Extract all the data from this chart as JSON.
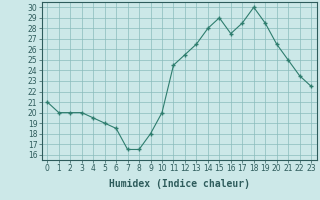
{
  "x": [
    0,
    1,
    2,
    3,
    4,
    5,
    6,
    7,
    8,
    9,
    10,
    11,
    12,
    13,
    14,
    15,
    16,
    17,
    18,
    19,
    20,
    21,
    22,
    23
  ],
  "y": [
    21,
    20,
    20,
    20,
    19.5,
    19,
    18.5,
    16.5,
    16.5,
    18,
    20,
    24.5,
    25.5,
    26.5,
    28,
    29,
    27.5,
    28.5,
    30,
    28.5,
    26.5,
    25,
    23.5,
    22.5
  ],
  "line_color": "#2e7d6e",
  "marker": "+",
  "marker_color": "#2e7d6e",
  "bg_color": "#cce8e8",
  "grid_color": "#8abcbc",
  "xlabel": "Humidex (Indice chaleur)",
  "xlim": [
    -0.5,
    23.5
  ],
  "ylim": [
    15.5,
    30.5
  ],
  "yticks": [
    16,
    17,
    18,
    19,
    20,
    21,
    22,
    23,
    24,
    25,
    26,
    27,
    28,
    29,
    30
  ],
  "xticks": [
    0,
    1,
    2,
    3,
    4,
    5,
    6,
    7,
    8,
    9,
    10,
    11,
    12,
    13,
    14,
    15,
    16,
    17,
    18,
    19,
    20,
    21,
    22,
    23
  ],
  "tick_fontsize": 5.5,
  "xlabel_fontsize": 7.0,
  "tick_color": "#2e5c5c",
  "spine_color": "#2e5c5c"
}
